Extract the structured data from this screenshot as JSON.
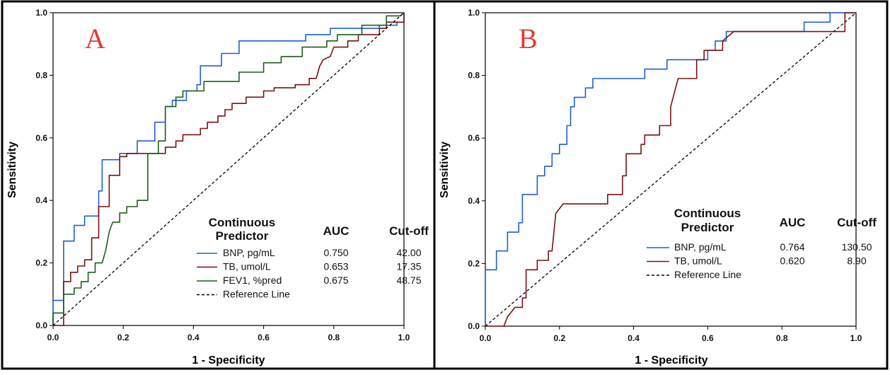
{
  "chart_data": [
    {
      "panel_label": "A",
      "panel_label_color": "#e53935",
      "type": "line",
      "xlabel": "1 - Specificity",
      "ylabel": "Sensitivity",
      "xlim": [
        0,
        1
      ],
      "ylim": [
        0,
        1
      ],
      "xticks": [
        "0.0",
        "0.2",
        "0.4",
        "0.6",
        "0.8",
        "1.0"
      ],
      "yticks": [
        "0.0",
        "0.2",
        "0.4",
        "0.6",
        "0.8",
        "1.0"
      ],
      "legend_position": "bottom-right",
      "legend_header": {
        "col1_line1": "Continuous",
        "col1_line2": "Predictor",
        "col2": "AUC",
        "col3": "Cut-off"
      },
      "series": [
        {
          "name": "BNP, pg/mL",
          "auc": "0.750",
          "cutoff": "42.00",
          "color": "#1f5fd6",
          "points": [
            [
              0,
              0
            ],
            [
              0,
              0.08
            ],
            [
              0.03,
              0.08
            ],
            [
              0.03,
              0.27
            ],
            [
              0.06,
              0.27
            ],
            [
              0.06,
              0.32
            ],
            [
              0.09,
              0.32
            ],
            [
              0.09,
              0.35
            ],
            [
              0.13,
              0.35
            ],
            [
              0.13,
              0.43
            ],
            [
              0.14,
              0.43
            ],
            [
              0.14,
              0.53
            ],
            [
              0.19,
              0.53
            ],
            [
              0.19,
              0.55
            ],
            [
              0.24,
              0.55
            ],
            [
              0.24,
              0.59
            ],
            [
              0.29,
              0.59
            ],
            [
              0.29,
              0.65
            ],
            [
              0.32,
              0.65
            ],
            [
              0.32,
              0.7
            ],
            [
              0.34,
              0.7
            ],
            [
              0.34,
              0.72
            ],
            [
              0.38,
              0.72
            ],
            [
              0.38,
              0.75
            ],
            [
              0.41,
              0.75
            ],
            [
              0.41,
              0.77
            ],
            [
              0.42,
              0.77
            ],
            [
              0.42,
              0.83
            ],
            [
              0.48,
              0.83
            ],
            [
              0.48,
              0.87
            ],
            [
              0.53,
              0.87
            ],
            [
              0.53,
              0.91
            ],
            [
              0.72,
              0.91
            ],
            [
              0.72,
              0.93
            ],
            [
              0.79,
              0.93
            ],
            [
              0.79,
              0.95
            ],
            [
              0.93,
              0.95
            ],
            [
              0.93,
              0.96
            ],
            [
              0.98,
              0.96
            ],
            [
              0.98,
              0.97
            ],
            [
              1,
              0.97
            ],
            [
              1,
              1
            ]
          ]
        },
        {
          "name": "TB, umol/L",
          "auc": "0.653",
          "cutoff": "17.35",
          "color": "#7d1010",
          "points": [
            [
              0,
              0
            ],
            [
              0.03,
              0
            ],
            [
              0.03,
              0.14
            ],
            [
              0.05,
              0.14
            ],
            [
              0.05,
              0.17
            ],
            [
              0.07,
              0.17
            ],
            [
              0.07,
              0.19
            ],
            [
              0.09,
              0.19
            ],
            [
              0.09,
              0.21
            ],
            [
              0.11,
              0.21
            ],
            [
              0.11,
              0.28
            ],
            [
              0.13,
              0.28
            ],
            [
              0.13,
              0.38
            ],
            [
              0.16,
              0.38
            ],
            [
              0.16,
              0.48
            ],
            [
              0.19,
              0.48
            ],
            [
              0.19,
              0.54
            ],
            [
              0.21,
              0.54
            ],
            [
              0.21,
              0.55
            ],
            [
              0.32,
              0.55
            ],
            [
              0.32,
              0.57
            ],
            [
              0.35,
              0.57
            ],
            [
              0.35,
              0.59
            ],
            [
              0.37,
              0.59
            ],
            [
              0.37,
              0.61
            ],
            [
              0.42,
              0.61
            ],
            [
              0.42,
              0.63
            ],
            [
              0.44,
              0.63
            ],
            [
              0.44,
              0.65
            ],
            [
              0.47,
              0.65
            ],
            [
              0.47,
              0.67
            ],
            [
              0.49,
              0.67
            ],
            [
              0.49,
              0.69
            ],
            [
              0.51,
              0.69
            ],
            [
              0.51,
              0.71
            ],
            [
              0.55,
              0.71
            ],
            [
              0.55,
              0.73
            ],
            [
              0.6,
              0.73
            ],
            [
              0.6,
              0.75
            ],
            [
              0.63,
              0.75
            ],
            [
              0.63,
              0.76
            ],
            [
              0.69,
              0.76
            ],
            [
              0.69,
              0.77
            ],
            [
              0.73,
              0.77
            ],
            [
              0.73,
              0.79
            ],
            [
              0.75,
              0.79
            ],
            [
              0.76,
              0.83
            ],
            [
              0.77,
              0.85
            ],
            [
              0.79,
              0.86
            ],
            [
              0.8,
              0.89
            ],
            [
              0.84,
              0.89
            ],
            [
              0.84,
              0.91
            ],
            [
              0.87,
              0.91
            ],
            [
              0.87,
              0.93
            ],
            [
              0.93,
              0.93
            ],
            [
              0.93,
              0.95
            ],
            [
              0.95,
              0.95
            ],
            [
              0.95,
              0.97
            ],
            [
              1,
              0.97
            ],
            [
              1,
              1
            ]
          ]
        },
        {
          "name": "FEV1, %pred",
          "auc": "0.675",
          "cutoff": "48.75",
          "color": "#1d5e1d",
          "points": [
            [
              0,
              0
            ],
            [
              0,
              0.04
            ],
            [
              0.03,
              0.04
            ],
            [
              0.03,
              0.1
            ],
            [
              0.06,
              0.1
            ],
            [
              0.06,
              0.12
            ],
            [
              0.08,
              0.12
            ],
            [
              0.08,
              0.14
            ],
            [
              0.1,
              0.14
            ],
            [
              0.1,
              0.17
            ],
            [
              0.12,
              0.17
            ],
            [
              0.12,
              0.2
            ],
            [
              0.14,
              0.2
            ],
            [
              0.15,
              0.24
            ],
            [
              0.16,
              0.3
            ],
            [
              0.17,
              0.33
            ],
            [
              0.19,
              0.33
            ],
            [
              0.19,
              0.36
            ],
            [
              0.21,
              0.36
            ],
            [
              0.21,
              0.38
            ],
            [
              0.24,
              0.38
            ],
            [
              0.24,
              0.4
            ],
            [
              0.27,
              0.4
            ],
            [
              0.27,
              0.55
            ],
            [
              0.3,
              0.55
            ],
            [
              0.3,
              0.59
            ],
            [
              0.32,
              0.59
            ],
            [
              0.32,
              0.7
            ],
            [
              0.35,
              0.7
            ],
            [
              0.35,
              0.73
            ],
            [
              0.37,
              0.73
            ],
            [
              0.37,
              0.75
            ],
            [
              0.43,
              0.75
            ],
            [
              0.43,
              0.78
            ],
            [
              0.53,
              0.78
            ],
            [
              0.53,
              0.81
            ],
            [
              0.6,
              0.81
            ],
            [
              0.6,
              0.84
            ],
            [
              0.65,
              0.84
            ],
            [
              0.65,
              0.86
            ],
            [
              0.71,
              0.86
            ],
            [
              0.71,
              0.89
            ],
            [
              0.78,
              0.89
            ],
            [
              0.78,
              0.91
            ],
            [
              0.81,
              0.91
            ],
            [
              0.81,
              0.93
            ],
            [
              0.88,
              0.93
            ],
            [
              0.88,
              0.96
            ],
            [
              0.95,
              0.96
            ],
            [
              0.95,
              0.99
            ],
            [
              0.99,
              0.99
            ],
            [
              1,
              1
            ]
          ]
        },
        {
          "name": "Reference Line",
          "auc": "",
          "cutoff": "",
          "color": "#000000",
          "dashed": true,
          "points": [
            [
              0,
              0
            ],
            [
              1,
              1
            ]
          ]
        }
      ]
    },
    {
      "panel_label": "B",
      "panel_label_color": "#e53935",
      "type": "line",
      "xlabel": "1 - Specificity",
      "ylabel": "Sensitivity",
      "xlim": [
        0,
        1
      ],
      "ylim": [
        0,
        1
      ],
      "xticks": [
        "0.0",
        "0.2",
        "0.4",
        "0.6",
        "0.8",
        "1.0"
      ],
      "yticks": [
        "0.0",
        "0.2",
        "0.4",
        "0.6",
        "0.8",
        "1.0"
      ],
      "legend_position": "bottom-right",
      "legend_header": {
        "col1_line1": "Continuous",
        "col1_line2": "Predictor",
        "col2": "AUC",
        "col3": "Cut-off"
      },
      "series": [
        {
          "name": "BNP, pg/mL",
          "auc": "0.764",
          "cutoff": "130.50",
          "color": "#1f5fd6",
          "points": [
            [
              0,
              0
            ],
            [
              0,
              0.18
            ],
            [
              0.03,
              0.18
            ],
            [
              0.03,
              0.24
            ],
            [
              0.06,
              0.24
            ],
            [
              0.06,
              0.3
            ],
            [
              0.09,
              0.3
            ],
            [
              0.09,
              0.33
            ],
            [
              0.1,
              0.33
            ],
            [
              0.1,
              0.42
            ],
            [
              0.14,
              0.42
            ],
            [
              0.14,
              0.48
            ],
            [
              0.16,
              0.48
            ],
            [
              0.16,
              0.51
            ],
            [
              0.18,
              0.51
            ],
            [
              0.18,
              0.55
            ],
            [
              0.2,
              0.55
            ],
            [
              0.2,
              0.58
            ],
            [
              0.22,
              0.58
            ],
            [
              0.22,
              0.64
            ],
            [
              0.23,
              0.64
            ],
            [
              0.23,
              0.7
            ],
            [
              0.24,
              0.7
            ],
            [
              0.24,
              0.73
            ],
            [
              0.27,
              0.73
            ],
            [
              0.27,
              0.76
            ],
            [
              0.29,
              0.76
            ],
            [
              0.29,
              0.79
            ],
            [
              0.43,
              0.79
            ],
            [
              0.43,
              0.82
            ],
            [
              0.49,
              0.82
            ],
            [
              0.49,
              0.85
            ],
            [
              0.6,
              0.85
            ],
            [
              0.6,
              0.88
            ],
            [
              0.62,
              0.88
            ],
            [
              0.62,
              0.91
            ],
            [
              0.65,
              0.91
            ],
            [
              0.65,
              0.94
            ],
            [
              0.86,
              0.94
            ],
            [
              0.86,
              0.97
            ],
            [
              0.93,
              0.97
            ],
            [
              0.93,
              1
            ],
            [
              1,
              1
            ]
          ]
        },
        {
          "name": "TB, umol/L",
          "auc": "0.620",
          "cutoff": "8.90",
          "color": "#7d1010",
          "points": [
            [
              0,
              0
            ],
            [
              0.05,
              0
            ],
            [
              0.06,
              0.03
            ],
            [
              0.08,
              0.06
            ],
            [
              0.1,
              0.06
            ],
            [
              0.1,
              0.09
            ],
            [
              0.11,
              0.09
            ],
            [
              0.11,
              0.18
            ],
            [
              0.14,
              0.18
            ],
            [
              0.14,
              0.21
            ],
            [
              0.17,
              0.21
            ],
            [
              0.17,
              0.24
            ],
            [
              0.18,
              0.24
            ],
            [
              0.19,
              0.36
            ],
            [
              0.21,
              0.39
            ],
            [
              0.33,
              0.39
            ],
            [
              0.33,
              0.42
            ],
            [
              0.37,
              0.42
            ],
            [
              0.37,
              0.48
            ],
            [
              0.38,
              0.48
            ],
            [
              0.38,
              0.55
            ],
            [
              0.42,
              0.55
            ],
            [
              0.42,
              0.58
            ],
            [
              0.43,
              0.58
            ],
            [
              0.43,
              0.61
            ],
            [
              0.47,
              0.61
            ],
            [
              0.47,
              0.64
            ],
            [
              0.5,
              0.64
            ],
            [
              0.5,
              0.7
            ],
            [
              0.52,
              0.79
            ],
            [
              0.57,
              0.79
            ],
            [
              0.57,
              0.85
            ],
            [
              0.59,
              0.85
            ],
            [
              0.59,
              0.88
            ],
            [
              0.64,
              0.88
            ],
            [
              0.64,
              0.91
            ],
            [
              0.67,
              0.94
            ],
            [
              0.97,
              0.94
            ],
            [
              0.97,
              1
            ],
            [
              1,
              1
            ]
          ]
        },
        {
          "name": "Reference Line",
          "auc": "",
          "cutoff": "",
          "color": "#000000",
          "dashed": true,
          "points": [
            [
              0,
              0
            ],
            [
              1,
              1
            ]
          ]
        }
      ]
    }
  ]
}
